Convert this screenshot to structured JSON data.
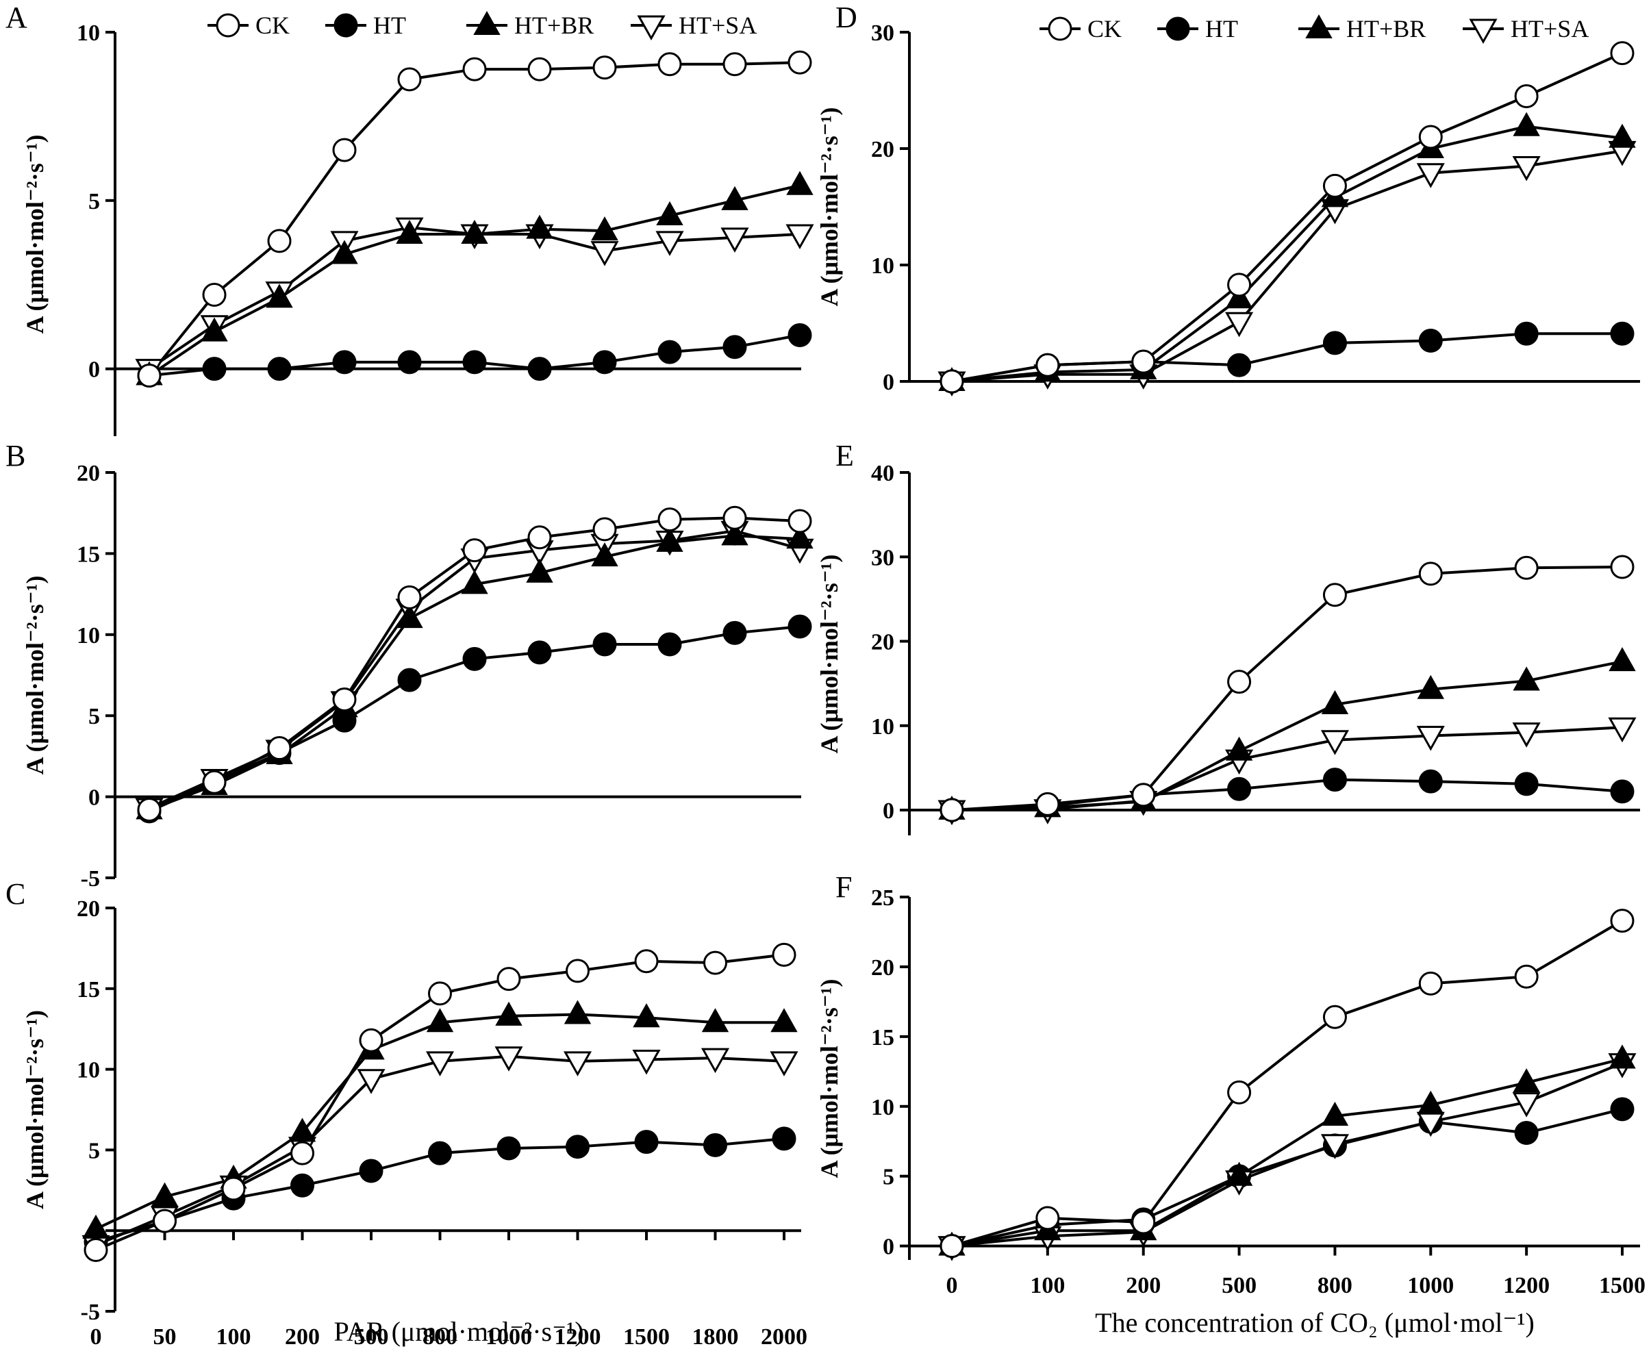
{
  "figure": {
    "x_title_par": "PAR (μmol·mol⁻²·s⁻¹)",
    "x_title_co2": "The concentration of CO₂ (μmol·mol⁻¹)"
  },
  "legend": {
    "left": [
      "CK",
      "HT",
      "HT+BR",
      "HT+SA"
    ],
    "right": [
      "CK",
      "HT",
      "HT+BR",
      "HT+SA"
    ]
  },
  "series_styles": {
    "CK": {
      "marker": "circle-open"
    },
    "HT": {
      "marker": "circle-filled"
    },
    "HT+BR": {
      "marker": "triangle-up-filled"
    },
    "HT+SA": {
      "marker": "triangle-down-open"
    }
  },
  "chart_data": [
    {
      "panel": "A",
      "type": "line",
      "column": "left",
      "ylabel": "A (μmol·mol⁻²·s⁻¹)",
      "ylim": [
        -2,
        10
      ],
      "yticks": [
        0,
        5,
        10
      ],
      "x_levels": [
        0,
        1,
        2,
        3,
        4,
        5,
        6,
        7,
        8,
        9,
        10
      ],
      "series": [
        {
          "name": "CK",
          "values": [
            -0.2,
            2.2,
            3.8,
            6.5,
            8.6,
            8.9,
            8.9,
            8.95,
            9.05,
            9.05,
            9.1
          ]
        },
        {
          "name": "HT",
          "values": [
            -0.2,
            0.0,
            0.0,
            0.2,
            0.2,
            0.2,
            0.0,
            0.2,
            0.5,
            0.65,
            1.0
          ]
        },
        {
          "name": "HT+BR",
          "values": [
            -0.2,
            1.1,
            2.1,
            3.4,
            4.0,
            4.0,
            4.15,
            4.1,
            4.55,
            5.0,
            5.45
          ]
        },
        {
          "name": "HT+SA",
          "values": [
            0.0,
            1.3,
            2.3,
            3.8,
            4.2,
            4.0,
            4.0,
            3.5,
            3.8,
            3.9,
            4.0
          ]
        }
      ]
    },
    {
      "panel": "B",
      "type": "line",
      "column": "left",
      "ylabel": "A (μmol·mol⁻²·s⁻¹)",
      "ylim": [
        -5,
        20
      ],
      "yticks": [
        -5,
        0,
        5,
        10,
        15,
        20
      ],
      "x_levels": [
        0,
        1,
        2,
        3,
        4,
        5,
        6,
        7,
        8,
        9,
        10
      ],
      "series": [
        {
          "name": "CK",
          "values": [
            -0.8,
            0.9,
            3.0,
            6.0,
            12.3,
            15.2,
            16.0,
            16.5,
            17.1,
            17.2,
            17.0
          ]
        },
        {
          "name": "HT",
          "values": [
            -0.9,
            0.9,
            2.7,
            4.7,
            7.2,
            8.5,
            8.9,
            9.4,
            9.4,
            10.1,
            10.5
          ]
        },
        {
          "name": "HT+BR",
          "values": [
            -0.8,
            0.7,
            2.6,
            5.5,
            11.0,
            13.1,
            13.8,
            14.8,
            15.7,
            16.1,
            15.9
          ]
        },
        {
          "name": "HT+SA",
          "values": [
            -0.7,
            1.1,
            2.9,
            5.9,
            11.6,
            14.7,
            15.2,
            15.6,
            15.8,
            16.4,
            15.3
          ]
        }
      ]
    },
    {
      "panel": "C",
      "type": "line",
      "column": "left",
      "xlabel": "PAR (μmol·mol⁻²·s⁻¹)",
      "ylabel": "A (μmol·mol⁻²·s⁻¹)",
      "ylim": [
        -5,
        20
      ],
      "yticks": [
        -5,
        0,
        5,
        10,
        15,
        20
      ],
      "categories": [
        "0",
        "50",
        "100",
        "200",
        "500",
        "800",
        "1000",
        "1200",
        "1500",
        "1800",
        "2000"
      ],
      "x_levels": [
        0,
        1,
        2,
        3,
        4,
        5,
        6,
        7,
        8,
        9,
        10
      ],
      "series": [
        {
          "name": "CK",
          "values": [
            -1.2,
            0.6,
            2.6,
            4.8,
            11.8,
            14.7,
            15.6,
            16.1,
            16.7,
            16.6,
            17.1
          ]
        },
        {
          "name": "HT",
          "values": [
            -0.7,
            0.6,
            2.0,
            2.8,
            3.7,
            4.8,
            5.1,
            5.2,
            5.5,
            5.3,
            5.7
          ]
        },
        {
          "name": "HT+BR",
          "values": [
            0.1,
            2.1,
            3.2,
            6.1,
            11.2,
            12.9,
            13.3,
            13.4,
            13.2,
            12.9,
            12.9
          ]
        },
        {
          "name": "HT+SA",
          "values": [
            -0.9,
            0.9,
            2.8,
            5.2,
            9.4,
            10.5,
            10.8,
            10.5,
            10.6,
            10.7,
            10.5
          ]
        }
      ]
    },
    {
      "panel": "D",
      "type": "line",
      "column": "right",
      "ylabel": "A (μmol·mol⁻²·s⁻¹)",
      "ylim": [
        0,
        30
      ],
      "yticks": [
        0,
        10,
        20,
        30
      ],
      "x_levels": [
        0,
        1,
        2,
        3,
        4,
        5,
        6,
        7
      ],
      "series": [
        {
          "name": "CK",
          "values": [
            0.0,
            1.4,
            1.7,
            8.3,
            16.8,
            21.0,
            24.5,
            28.2
          ]
        },
        {
          "name": "HT",
          "values": [
            0.0,
            1.4,
            1.7,
            1.4,
            3.3,
            3.5,
            4.1,
            4.1
          ]
        },
        {
          "name": "HT+BR",
          "values": [
            0.0,
            0.8,
            1.0,
            7.1,
            15.8,
            20.0,
            21.9,
            20.9
          ]
        },
        {
          "name": "HT+SA",
          "values": [
            0.0,
            0.6,
            0.6,
            5.1,
            14.8,
            17.9,
            18.5,
            19.8
          ]
        }
      ]
    },
    {
      "panel": "E",
      "type": "line",
      "column": "right",
      "ylabel": "A (μmol·mol⁻²·s⁻¹)",
      "ylim": [
        -3,
        40
      ],
      "yticks": [
        0,
        10,
        20,
        30,
        40
      ],
      "x_levels": [
        0,
        1,
        2,
        3,
        4,
        5,
        6,
        7
      ],
      "series": [
        {
          "name": "CK",
          "values": [
            0.0,
            0.7,
            1.8,
            15.2,
            25.5,
            28.0,
            28.7,
            28.8
          ]
        },
        {
          "name": "HT",
          "values": [
            0.0,
            0.5,
            1.8,
            2.5,
            3.6,
            3.4,
            3.1,
            2.2
          ]
        },
        {
          "name": "HT+BR",
          "values": [
            0.0,
            0.3,
            1.0,
            7.0,
            12.5,
            14.3,
            15.3,
            17.6
          ]
        },
        {
          "name": "HT+SA",
          "values": [
            0.0,
            0.1,
            1.1,
            6.0,
            8.3,
            8.8,
            9.2,
            9.8
          ]
        }
      ]
    },
    {
      "panel": "F",
      "type": "line",
      "column": "right",
      "xlabel": "The concentration of CO₂ (μmol·mol⁻¹)",
      "ylabel": "A (μmol·mol⁻²·s⁻¹)",
      "ylim": [
        -1,
        25
      ],
      "yticks": [
        0,
        5,
        10,
        15,
        20,
        25
      ],
      "categories": [
        "0",
        "100",
        "200",
        "500",
        "800",
        "1000",
        "1200",
        "1500"
      ],
      "x_levels": [
        0,
        1,
        2,
        3,
        4,
        5,
        6,
        7
      ],
      "series": [
        {
          "name": "CK",
          "values": [
            0.0,
            2.0,
            1.7,
            11.0,
            16.4,
            18.8,
            19.3,
            23.3
          ]
        },
        {
          "name": "HT",
          "values": [
            0.0,
            1.5,
            1.9,
            5.0,
            7.2,
            8.9,
            8.1,
            9.8
          ]
        },
        {
          "name": "HT+BR",
          "values": [
            0.0,
            1.1,
            1.1,
            5.0,
            9.3,
            10.1,
            11.7,
            13.4
          ]
        },
        {
          "name": "HT+SA",
          "values": [
            0.0,
            0.7,
            1.0,
            4.7,
            7.3,
            8.9,
            10.3,
            13.1
          ]
        }
      ]
    }
  ]
}
